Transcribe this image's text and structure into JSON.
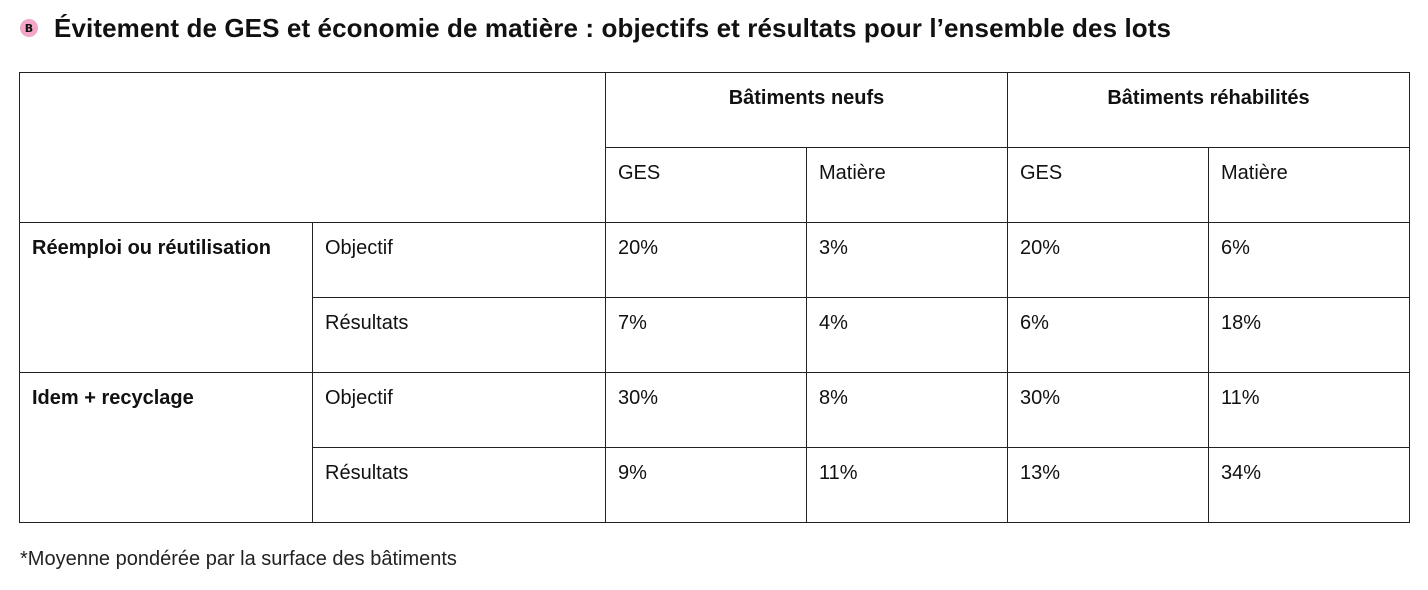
{
  "title": {
    "badge": "B",
    "text": "Évitement de GES et économie de matière : objectifs et résultats pour l’ensemble des lots"
  },
  "table": {
    "groups": [
      "Bâtiments neufs",
      "Bâtiments réhabilités"
    ],
    "subheaders": [
      "GES",
      "Matière",
      "GES",
      "Matière"
    ],
    "categories": [
      {
        "label": "Réemploi ou réutilisation",
        "rows": [
          {
            "label": "Objectif",
            "values": [
              "20%",
              "3%",
              "20%",
              "6%"
            ]
          },
          {
            "label": "Résultats",
            "values": [
              "7%",
              "4%",
              "6%",
              "18%"
            ]
          }
        ]
      },
      {
        "label": "Idem + recyclage",
        "rows": [
          {
            "label": "Objectif",
            "values": [
              "30%",
              "8%",
              "30%",
              "11%"
            ]
          },
          {
            "label": "Résultats",
            "values": [
              "9%",
              "11%",
              "13%",
              "34%"
            ]
          }
        ]
      }
    ]
  },
  "footnote": "*Moyenne pondérée par la surface des bâtiments",
  "colors": {
    "badge": "#f2a6c8",
    "border": "#222222",
    "text": "#111111"
  }
}
